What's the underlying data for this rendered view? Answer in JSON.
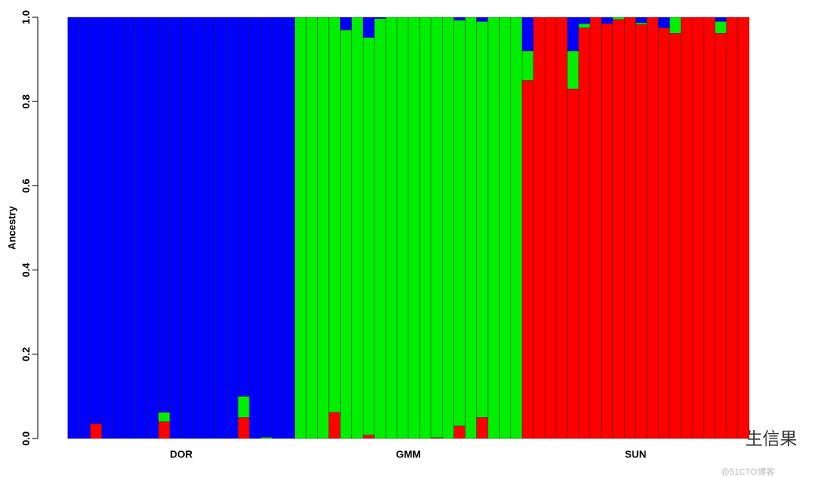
{
  "chart_data": {
    "type": "stacked_bar",
    "y_label": "Ancestry",
    "groups": [
      "DOR",
      "GMM",
      "SUN"
    ],
    "categories": [
      null,
      null,
      null,
      null,
      null,
      null,
      null,
      null,
      null,
      null,
      null,
      null,
      null,
      null,
      null,
      null,
      null,
      null,
      null,
      null,
      null,
      null,
      null,
      null,
      null,
      null,
      null,
      null,
      null,
      null,
      null,
      null,
      null,
      null,
      null,
      null,
      null,
      null,
      null,
      null,
      null,
      null,
      null,
      null,
      null,
      null,
      null,
      null,
      null,
      null,
      null,
      null,
      null,
      null,
      null,
      null,
      null,
      null,
      null,
      null
    ],
    "series": [
      {
        "color": "#ff0000",
        "values": [
          0,
          0,
          0.035,
          0,
          0,
          0,
          0,
          0,
          0.04,
          0,
          0,
          0,
          0,
          0,
          0,
          0.05,
          0,
          0,
          0,
          0,
          0,
          0,
          0,
          0.062,
          0,
          0,
          0.008,
          0,
          0,
          0,
          0,
          0,
          0.002,
          0,
          0.03,
          0,
          0.05,
          0,
          0,
          0,
          0.85,
          1,
          1,
          1,
          0.83,
          0.975,
          1,
          0.985,
          0.995,
          1,
          0.983,
          1,
          0.975,
          0.962,
          1,
          1,
          1,
          0.962,
          1,
          1
        ]
      },
      {
        "color": "#00ee00",
        "values": [
          0,
          0,
          0,
          0,
          0,
          0,
          0,
          0,
          0.022,
          0,
          0,
          0,
          0,
          0,
          0,
          0.05,
          0,
          0.003,
          0,
          0,
          1,
          1,
          1,
          0.938,
          0.97,
          1,
          0.944,
          0.997,
          1,
          1,
          1,
          1,
          0.998,
          1,
          0.963,
          1,
          0.94,
          1,
          1,
          1,
          0.07,
          0,
          0,
          0,
          0.09,
          0.01,
          0,
          0,
          0.005,
          0,
          0.004,
          0,
          0,
          0.038,
          0,
          0,
          0,
          0.028,
          0,
          0
        ]
      },
      {
        "color": "#0000ff",
        "values": [
          1,
          1,
          0.965,
          1,
          1,
          1,
          1,
          1,
          0.938,
          1,
          1,
          1,
          1,
          1,
          1,
          0.9,
          1,
          0.997,
          1,
          1,
          0,
          0,
          0,
          0,
          0.03,
          0,
          0.048,
          0.003,
          0,
          0,
          0,
          0,
          0,
          0,
          0.007,
          0,
          0.01,
          0,
          0,
          0,
          0.08,
          0,
          0,
          0,
          0.08,
          0.015,
          0,
          0.015,
          0,
          0,
          0.013,
          0,
          0.025,
          0,
          0,
          0,
          0,
          0.01,
          0,
          0
        ]
      }
    ],
    "ylim": [
      0,
      1
    ],
    "yticks": [
      {
        "value": 0,
        "label": "0.0"
      },
      0.2,
      0.4,
      0.6,
      0.8,
      {
        "value": 1,
        "label": "1.0"
      }
    ],
    "watermark": "生信果",
    "credit": "@51CTO博客"
  }
}
